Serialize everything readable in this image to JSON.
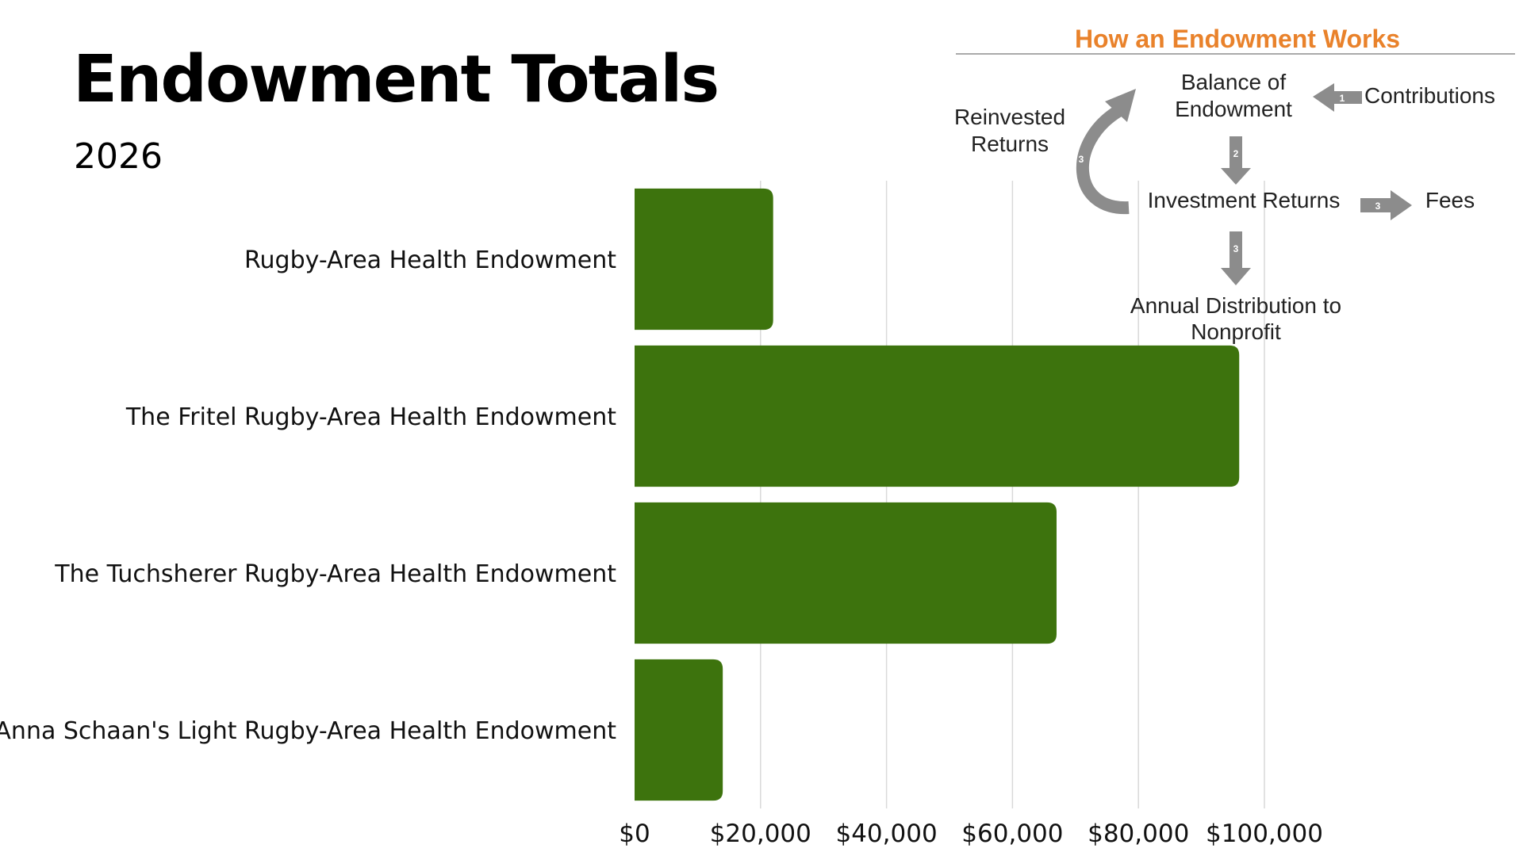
{
  "page": {
    "title": "Endowment Totals",
    "subtitle": "2026"
  },
  "colors": {
    "bar": "#3d730d",
    "grid": "#d9d9d9",
    "arrow": "#8c8c8c",
    "inset_title": "#e9822b"
  },
  "diagram": {
    "title": "How an Endowment Works",
    "nodes": {
      "balance_line1": "Balance of",
      "balance_line2": "Endowment",
      "contributions": "Contributions",
      "reinvested_line1": "Reinvested",
      "reinvested_line2": "Returns",
      "investment_returns": "Investment Returns",
      "fees": "Fees",
      "distribution_line1": "Annual Distribution to",
      "distribution_line2": "Nonprofit"
    },
    "step_numbers": {
      "contributions": "1",
      "to_returns": "2",
      "reinvest": "3",
      "fees": "3",
      "distribution": "3"
    }
  },
  "chart_data": {
    "type": "bar",
    "orientation": "horizontal",
    "title": "Endowment Totals",
    "subtitle": "2026",
    "categories": [
      "Rugby-Area Health Endowment",
      "The Fritel Rugby-Area Health Endowment",
      "The Tuchsherer Rugby-Area Health Endowment",
      "Anna Schaan's Light Rugby-Area Health Endowment"
    ],
    "values": [
      22000,
      96000,
      67000,
      14000
    ],
    "xlim": [
      0,
      100000
    ],
    "xticks": [
      0,
      20000,
      40000,
      60000,
      80000,
      100000
    ],
    "xtick_labels": [
      "$0",
      "$20,000",
      "$40,000",
      "$60,000",
      "$80,000",
      "$100,000"
    ],
    "grid": true,
    "legend": "none"
  }
}
